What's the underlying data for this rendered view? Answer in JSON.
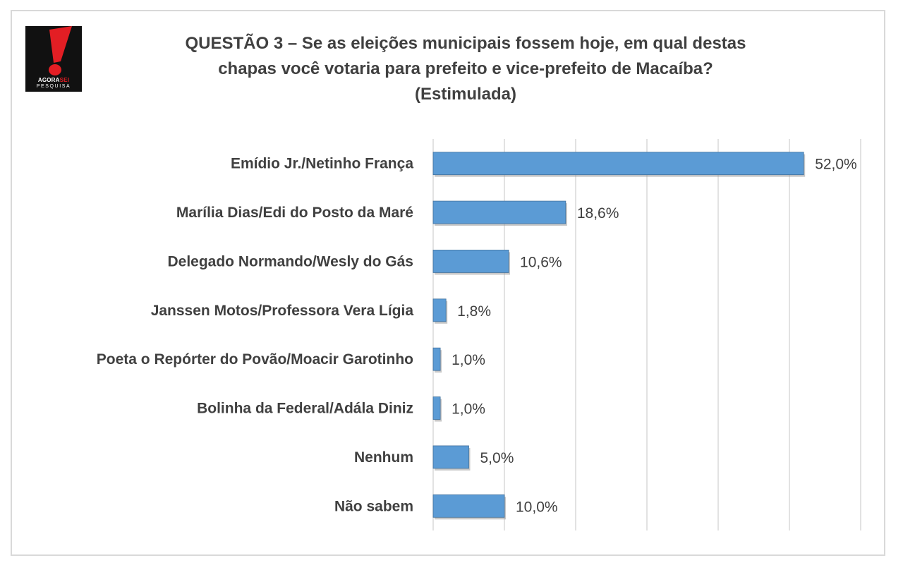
{
  "logo": {
    "line1_a": "AGORA",
    "line1_b": "SEI",
    "line2": "PESQUISA"
  },
  "title": {
    "line1": "QUESTÃO 3 – Se as eleições municipais fossem hoje, em qual destas",
    "line2": "chapas você votaria para prefeito e vice-prefeito de Macaíba?",
    "line3": "(Estimulada)"
  },
  "colors": {
    "bar": "#5b9bd5",
    "bar_edge": "#41719c",
    "grid": "#d9d9d9",
    "text": "#404040",
    "logo_red": "#e31e24"
  },
  "chart_data": {
    "type": "bar",
    "orientation": "horizontal",
    "categories": [
      "Emídio Jr./Netinho França",
      "Marília Dias/Edi do Posto da Maré",
      "Delegado Normando/Wesly do Gás",
      "Janssen Motos/Professora Vera Lígia",
      "Poeta o Repórter do Povão/Moacir Garotinho",
      "Bolinha da Federal/Adála Diniz",
      "Nenhum",
      "Não sabem"
    ],
    "values": [
      52.0,
      18.6,
      10.6,
      1.8,
      1.0,
      1.0,
      5.0,
      10.0
    ],
    "value_labels": [
      "52,0%",
      "18,6%",
      "10,6%",
      "1,8%",
      "1,0%",
      "1,0%",
      "5,0%",
      "10,0%"
    ],
    "xlim": [
      0,
      60
    ],
    "grid": true,
    "legend": "none"
  }
}
